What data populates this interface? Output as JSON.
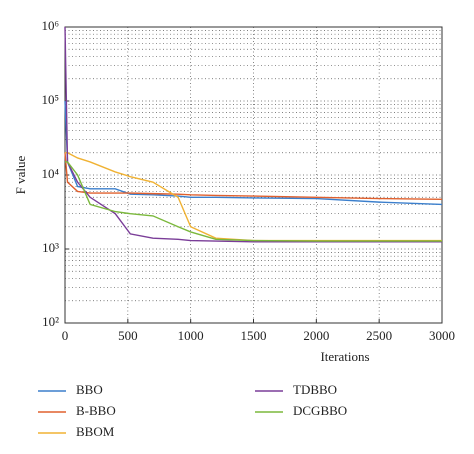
{
  "chart_data": {
    "type": "line",
    "x_label": "Iterations",
    "y_label": "F value",
    "x": [
      0,
      20,
      100,
      200,
      400,
      520,
      700,
      900,
      1000,
      1200,
      1500,
      2000,
      2500,
      3000
    ],
    "series": [
      {
        "name": "BBO",
        "color": "#3b7fcc",
        "values": [
          100000,
          15000,
          7000,
          6500,
          6500,
          5500,
          5400,
          5200,
          5000,
          5000,
          4900,
          4800,
          4300,
          4000
        ]
      },
      {
        "name": "B-BBO",
        "color": "#e0602e",
        "values": [
          20000,
          8000,
          6000,
          5700,
          5700,
          5700,
          5600,
          5500,
          5400,
          5300,
          5200,
          5000,
          4800,
          4700
        ]
      },
      {
        "name": "BBOM",
        "color": "#f0b233",
        "values": [
          20000,
          20000,
          17000,
          15000,
          11000,
          9500,
          8000,
          5000,
          2000,
          1400,
          1300,
          1300,
          1300,
          1300
        ]
      },
      {
        "name": "TDBBO",
        "color": "#7a3d98",
        "values": [
          1000000,
          15000,
          8000,
          5000,
          3000,
          1600,
          1400,
          1350,
          1300,
          1280,
          1250,
          1250,
          1250,
          1250
        ]
      },
      {
        "name": "DCGBBO",
        "color": "#7bb83c",
        "values": [
          15000,
          15000,
          10000,
          4000,
          3200,
          3000,
          2800,
          2000,
          1700,
          1350,
          1300,
          1280,
          1280,
          1280
        ]
      }
    ],
    "xlim": [
      0,
      3000
    ],
    "xticks": [
      0,
      500,
      1000,
      1500,
      2000,
      2500,
      3000
    ],
    "ylim": [
      100,
      1000000
    ],
    "log_y": true,
    "yticks": [
      {
        "value": 100,
        "label": "10²"
      },
      {
        "value": 1000,
        "label": "10³"
      },
      {
        "value": 10000,
        "label": "10⁴"
      },
      {
        "value": 100000,
        "label": "10⁵"
      },
      {
        "value": 1000000,
        "label": "10⁶"
      }
    ],
    "grid": true
  }
}
